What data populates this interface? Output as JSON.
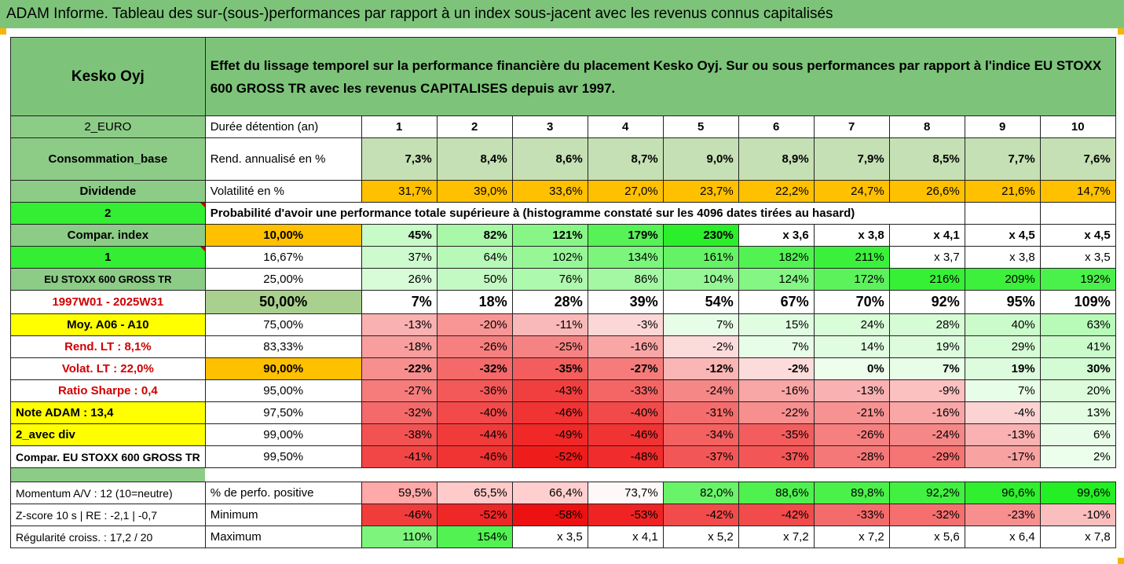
{
  "banner": "ADAM Informe. Tableau des sur-(sous-)performances par rapport à un index sous-jacent avec les revenus connus capitalisés",
  "header": {
    "company": "Kesko Oyj",
    "description": "Effet du lissage temporel sur la performance financière du placement Kesko Oyj. Sur ou sous performances par rapport à l'indice EU STOXX 600 GROSS TR avec les revenus CAPITALISES depuis avr 1997."
  },
  "left": {
    "currency": "2_EURO",
    "sector": "Consommation_base",
    "dividende": "Dividende",
    "two": "2",
    "compar_index": "Compar. index",
    "one": "1",
    "index_name": "EU STOXX 600 GROSS TR",
    "period": "1997W01 - 2025W31",
    "moy": "Moy. A06 - A10",
    "rend_lt": "Rend. LT :    8,1%",
    "volat_lt": "Volat. LT :    22,0%",
    "sharpe": "Ratio Sharpe :    0,4",
    "note": "Note ADAM : 13,4",
    "avec_div": "2_avec div",
    "compar_full": "Compar. EU STOXX 600 GROSS TR",
    "momentum": "Momentum A/V : 12 (10=neutre)",
    "zscore": "Z-score 10 s  |  RE : -2,1  | -0,7",
    "regularite": "Régularité croiss. : 17,2 / 20"
  },
  "labels": {
    "duree": "Durée détention (an)",
    "rend": "Rend. annualisé en %",
    "vol": "Volatilité en %",
    "proba": "Probabilité d'avoir une performance totale supérieure à (histogramme constaté sur les 4096 dates tirées au hasard)",
    "positive": "% de perfo. positive",
    "minimum": "Minimum",
    "maximum": "Maximum"
  },
  "years": [
    "1",
    "2",
    "3",
    "4",
    "5",
    "6",
    "7",
    "8",
    "9",
    "10"
  ],
  "rend": [
    "7,3%",
    "8,4%",
    "8,6%",
    "8,7%",
    "9,0%",
    "8,9%",
    "7,9%",
    "8,5%",
    "7,7%",
    "7,6%"
  ],
  "vol": [
    "31,7%",
    "39,0%",
    "33,6%",
    "27,0%",
    "23,7%",
    "22,2%",
    "24,7%",
    "26,6%",
    "21,6%",
    "14,7%"
  ],
  "pct_rows": [
    {
      "pct": "10,00%",
      "vals": [
        "45%",
        "82%",
        "121%",
        "179%",
        "230%",
        "x 3,6",
        "x 3,8",
        "x 4,1",
        "x 4,5",
        "x 4,5"
      ]
    },
    {
      "pct": "16,67%",
      "vals": [
        "37%",
        "64%",
        "102%",
        "134%",
        "161%",
        "182%",
        "211%",
        "x 3,7",
        "x 3,8",
        "x 3,5"
      ]
    },
    {
      "pct": "25,00%",
      "vals": [
        "26%",
        "50%",
        "76%",
        "86%",
        "104%",
        "124%",
        "172%",
        "216%",
        "209%",
        "192%"
      ]
    },
    {
      "pct": "50,00%",
      "vals": [
        "7%",
        "18%",
        "28%",
        "39%",
        "54%",
        "67%",
        "70%",
        "92%",
        "95%",
        "109%"
      ]
    },
    {
      "pct": "75,00%",
      "vals": [
        "-13%",
        "-20%",
        "-11%",
        "-3%",
        "7%",
        "15%",
        "24%",
        "28%",
        "40%",
        "63%"
      ]
    },
    {
      "pct": "83,33%",
      "vals": [
        "-18%",
        "-26%",
        "-25%",
        "-16%",
        "-2%",
        "7%",
        "14%",
        "19%",
        "29%",
        "41%"
      ]
    },
    {
      "pct": "90,00%",
      "vals": [
        "-22%",
        "-32%",
        "-35%",
        "-27%",
        "-12%",
        "-2%",
        "0%",
        "7%",
        "19%",
        "30%"
      ]
    },
    {
      "pct": "95,00%",
      "vals": [
        "-27%",
        "-36%",
        "-43%",
        "-33%",
        "-24%",
        "-16%",
        "-13%",
        "-9%",
        "7%",
        "20%"
      ]
    },
    {
      "pct": "97,50%",
      "vals": [
        "-32%",
        "-40%",
        "-46%",
        "-40%",
        "-31%",
        "-22%",
        "-21%",
        "-16%",
        "-4%",
        "13%"
      ]
    },
    {
      "pct": "99,00%",
      "vals": [
        "-38%",
        "-44%",
        "-49%",
        "-46%",
        "-34%",
        "-35%",
        "-26%",
        "-24%",
        "-13%",
        "6%"
      ]
    },
    {
      "pct": "99,50%",
      "vals": [
        "-41%",
        "-46%",
        "-52%",
        "-48%",
        "-37%",
        "-37%",
        "-28%",
        "-29%",
        "-17%",
        "2%"
      ]
    }
  ],
  "positive": [
    "59,5%",
    "65,5%",
    "66,4%",
    "73,7%",
    "82,0%",
    "88,6%",
    "89,8%",
    "92,2%",
    "96,6%",
    "99,6%"
  ],
  "minimum": [
    "-46%",
    "-52%",
    "-58%",
    "-53%",
    "-42%",
    "-42%",
    "-33%",
    "-32%",
    "-23%",
    "-10%"
  ],
  "maximum": [
    "110%",
    "154%",
    "x 3,5",
    "x 4,1",
    "x 5,2",
    "x 7,2",
    "x 7,2",
    "x 5,6",
    "x 6,4",
    "x 7,8"
  ],
  "colors": {
    "header_green": "#7dc47a",
    "mid_green": "#8ccc86",
    "bright_green": "#33ee33",
    "yellow": "#ffff00",
    "orange": "#ffc000",
    "olive": "#a9d08e",
    "rend_fill": "#c5e0b4",
    "label_red": "#d00000"
  }
}
